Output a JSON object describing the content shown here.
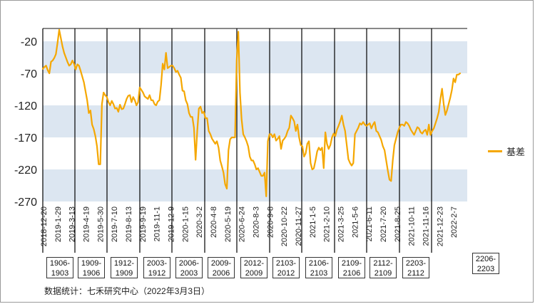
{
  "chart_data": {
    "type": "line",
    "title": "",
    "xlabel": "",
    "ylabel": "",
    "ylim": [
      -270,
      0
    ],
    "yticks": [
      -20,
      -70,
      -120,
      -170,
      -220,
      -270
    ],
    "xlabels": [
      "2018-12-20",
      "2019-1-29",
      "2019-3-13",
      "2019-4-19",
      "2019-5-30",
      "2019-7-10",
      "2019-8-13",
      "2019-9-19",
      "2019-11-1",
      "2019-12-9",
      "2020-1-15",
      "2020-3-2",
      "2020-4-8",
      "2020-5-19",
      "2020-6-24",
      "2020-8-3",
      "2020-9-8",
      "2020-10-22",
      "2020-11-27",
      "2021-1-5",
      "2021-2-10",
      "2021-3-25",
      "2021-5-6",
      "2021-6-11",
      "2021-7-20",
      "2021-8-25",
      "2021-10-11",
      "2021-11-16",
      "2021-12-23",
      "2022-2-7"
    ],
    "contracts": [
      "1906-\n1903",
      "1909-\n1906",
      "1912-\n1909",
      "2003-\n1912",
      "2006-\n2003",
      "2009-\n2006",
      "2012-\n2009",
      "2103-\n2012",
      "2106-\n2103",
      "2109-\n2106",
      "2112-\n2109",
      "2203-\n2112",
      "2206-\n2203"
    ],
    "grid": "alternating horizontal bands",
    "legend_position": "right",
    "colors": {
      "series": "#f5a700",
      "band": "#dce6f1",
      "divider": "#000000"
    },
    "series": [
      {
        "name": "基差",
        "values": [
          -63,
          -60,
          -58,
          -65,
          -70,
          -52,
          -50,
          -46,
          -40,
          -22,
          -2,
          -15,
          -28,
          -38,
          -45,
          -52,
          -58,
          -56,
          -50,
          -55,
          -64,
          -56,
          -58,
          -66,
          -75,
          -84,
          -98,
          -112,
          -132,
          -128,
          -150,
          -157,
          -168,
          -184,
          -212,
          -212,
          -118,
          -100,
          -104,
          -107,
          -115,
          -120,
          -113,
          -118,
          -125,
          -124,
          -130,
          -119,
          -126,
          -125,
          -118,
          -110,
          -105,
          -104,
          -115,
          -107,
          -112,
          -120,
          -115,
          -92,
          -96,
          -100,
          -106,
          -108,
          -110,
          -104,
          -112,
          -112,
          -118,
          -120,
          -114,
          -112,
          -88,
          -55,
          -64,
          -38,
          -62,
          -60,
          -58,
          -58,
          -62,
          -68,
          -66,
          -72,
          -77,
          -97,
          -98,
          -112,
          -118,
          -132,
          -138,
          -138,
          -155,
          -205,
          -160,
          -125,
          -122,
          -132,
          -130,
          -140,
          -140,
          -160,
          -165,
          -172,
          -176,
          -180,
          -176,
          -186,
          -206,
          -215,
          -225,
          -243,
          -250,
          -190,
          -173,
          -170,
          -170,
          -170,
          -50,
          -5,
          -100,
          -142,
          -165,
          -170,
          -176,
          -184,
          -200,
          -206,
          -206,
          -212,
          -220,
          -218,
          -224,
          -230,
          -230,
          -225,
          -262,
          -176,
          -165,
          -165,
          -170,
          -165,
          -175,
          -172,
          -168,
          -188,
          -175,
          -172,
          -168,
          -160,
          -155,
          -136,
          -140,
          -145,
          -160,
          -150,
          -170,
          -182,
          -184,
          -200,
          -195,
          -180,
          -176,
          -210,
          -220,
          -218,
          -206,
          -192,
          -186,
          -190,
          -186,
          -218,
          -162,
          -180,
          -188,
          -182,
          -170,
          -164,
          -168,
          -158,
          -152,
          -145,
          -136,
          -150,
          -160,
          -182,
          -204,
          -210,
          -214,
          -210,
          -165,
          -160,
          -155,
          -148,
          -150,
          -146,
          -150,
          -152,
          -150,
          -148,
          -156,
          -150,
          -146,
          -160,
          -162,
          -168,
          -174,
          -184,
          -190,
          -206,
          -222,
          -236,
          -238,
          -206,
          -182,
          -172,
          -162,
          -155,
          -150,
          -150,
          -152,
          -146,
          -148,
          -152,
          -158,
          -162,
          -166,
          -160,
          -154,
          -156,
          -162,
          -164,
          -160,
          -158,
          -166,
          -150,
          -166,
          -160,
          -156,
          -148,
          -140,
          -130,
          -110,
          -94,
          -118,
          -135,
          -128,
          -118,
          -108,
          -96,
          -78,
          -84,
          -72,
          -72,
          -70
        ]
      }
    ],
    "source": "数据统计：七禾研究中心（2022年3月3日）"
  }
}
